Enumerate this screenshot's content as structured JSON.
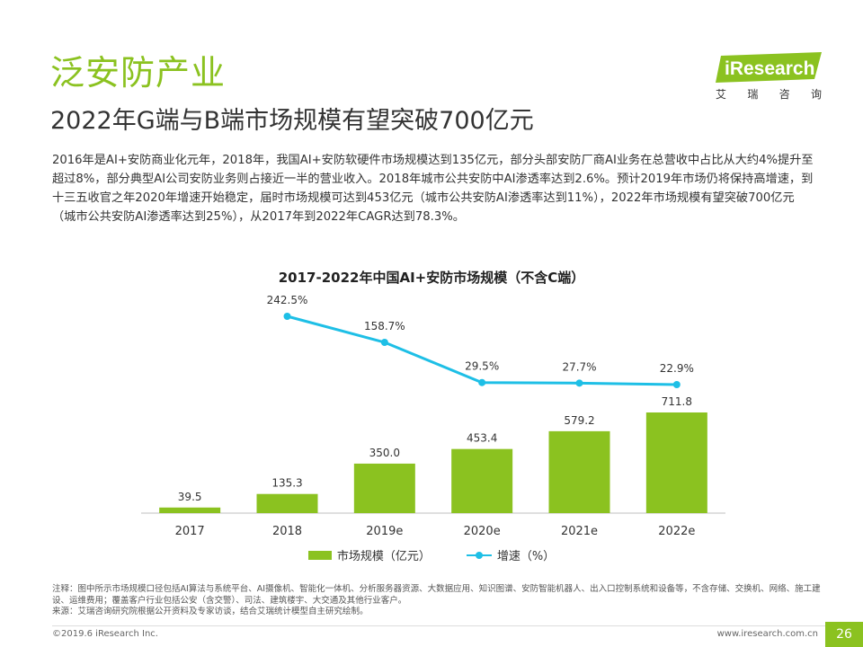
{
  "header": {
    "section_title": "泛安防产业",
    "headline": "2022年G端与B端市场规模有望突破700亿元"
  },
  "logo": {
    "text": "iResearch",
    "sub_chars": [
      "艾",
      "瑞",
      "咨",
      "询"
    ]
  },
  "body_text": "2016年是AI+安防商业化元年，2018年，我国AI+安防软硬件市场规模达到135亿元，部分头部安防厂商AI业务在总营收中占比从大约4%提升至超过8%，部分典型AI公司安防业务则占接近一半的营业收入。2018年城市公共安防中AI渗透率达到2.6%。预计2019年市场仍将保持高增速，到十三五收官之年2020年增速开始稳定，届时市场规模可达到453亿元（城市公共安防AI渗透率达到11%），2022年市场规模有望突破700亿元（城市公共安防AI渗透率达到25%），从2017年到2022年CAGR达到78.3%。",
  "chart_data": {
    "type": "bar",
    "title": "2017-2022年中国AI+安防市场规模（不含C端）",
    "categories": [
      "2017",
      "2018",
      "2019e",
      "2020e",
      "2021e",
      "2022e"
    ],
    "series": [
      {
        "name": "市场规模（亿元）",
        "type": "bar",
        "values": [
          39.5,
          135.3,
          350.0,
          453.4,
          579.2,
          711.8
        ],
        "labels": [
          "39.5",
          "135.3",
          "350.0",
          "453.4",
          "579.2",
          "711.8"
        ]
      },
      {
        "name": "增速（%）",
        "type": "line",
        "values": [
          null,
          242.5,
          158.7,
          29.5,
          27.7,
          22.9
        ],
        "labels": [
          "",
          "242.5%",
          "158.7%",
          "29.5%",
          "27.7%",
          "22.9%"
        ]
      }
    ],
    "bar_color": "#8bc220",
    "line_color": "#1ebfe6",
    "legend_position": "bottom",
    "grid": false
  },
  "notes": {
    "note": "注释：图中所示市场规模口径包括AI算法与系统平台、AI摄像机、智能化一体机、分析服务器资源、大数据应用、知识图谱、安防智能机器人、出入口控制系统和设备等，不含存储、交换机、网络、施工建设、运维费用；覆盖客户行业包括公安（含交警）、司法、建筑楼宇、大交通及其他行业客户。",
    "source": "来源：艾瑞咨询研究院根据公开资料及专家访谈，结合艾瑞统计模型自主研究绘制。"
  },
  "footer": {
    "copyright": "©2019.6 iResearch Inc.",
    "website": "www.iresearch.com.cn",
    "page_number": "26"
  }
}
